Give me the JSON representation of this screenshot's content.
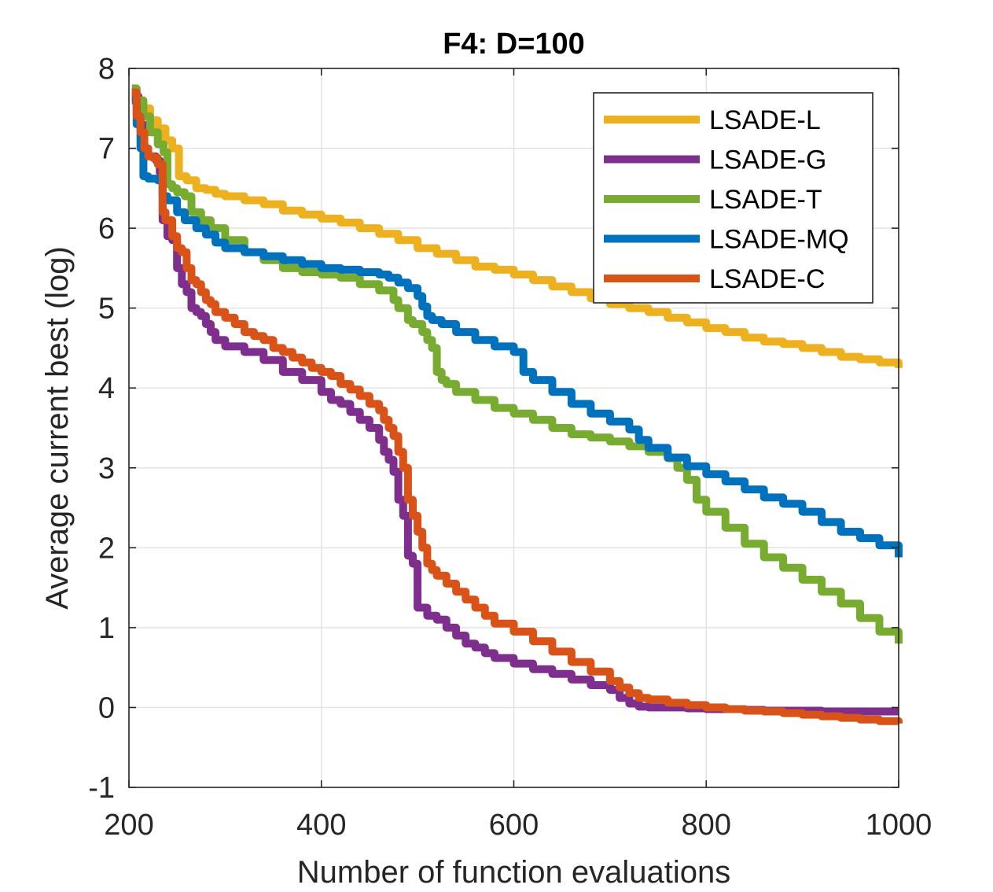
{
  "chart_data": {
    "type": "line",
    "title": "F4: D=100",
    "xlabel": "Number of function evaluations",
    "ylabel": "Average current best (log)",
    "xlim": [
      200,
      1000
    ],
    "ylim": [
      -1,
      8
    ],
    "xticks": [
      200,
      400,
      600,
      800,
      1000
    ],
    "yticks": [
      -1,
      0,
      1,
      2,
      3,
      4,
      5,
      6,
      7,
      8
    ],
    "xtick_labels": [
      "200",
      "400",
      "600",
      "800",
      "1000"
    ],
    "ytick_labels": [
      "-1",
      "0",
      "1",
      "2",
      "3",
      "4",
      "5",
      "6",
      "7",
      "8"
    ],
    "grid": true,
    "legend_position": "top-right",
    "series": [
      {
        "name": "LSADE-L",
        "color": "#EDB120",
        "x": [
          203,
          208,
          215,
          222,
          230,
          238,
          245,
          252,
          260,
          270,
          280,
          290,
          300,
          320,
          340,
          360,
          380,
          400,
          420,
          440,
          460,
          480,
          500,
          520,
          540,
          560,
          580,
          600,
          620,
          640,
          660,
          680,
          700,
          720,
          740,
          760,
          780,
          800,
          820,
          840,
          860,
          880,
          900,
          920,
          940,
          960,
          980,
          1000
        ],
        "y": [
          7.7,
          7.6,
          7.5,
          7.35,
          7.25,
          7.1,
          7.0,
          6.65,
          6.6,
          6.5,
          6.48,
          6.43,
          6.4,
          6.35,
          6.3,
          6.22,
          6.17,
          6.12,
          6.07,
          6.0,
          5.93,
          5.85,
          5.75,
          5.68,
          5.6,
          5.52,
          5.48,
          5.42,
          5.35,
          5.27,
          5.2,
          5.12,
          5.05,
          5.0,
          4.95,
          4.88,
          4.82,
          4.75,
          4.7,
          4.63,
          4.58,
          4.55,
          4.5,
          4.45,
          4.39,
          4.36,
          4.32,
          4.25
        ]
      },
      {
        "name": "LSADE-G",
        "color": "#7E2F8E",
        "x": [
          203,
          210,
          215,
          220,
          228,
          232,
          235,
          240,
          245,
          250,
          255,
          260,
          265,
          270,
          275,
          280,
          285,
          290,
          300,
          320,
          340,
          360,
          380,
          400,
          410,
          420,
          430,
          440,
          450,
          460,
          465,
          470,
          475,
          480,
          485,
          490,
          495,
          500,
          510,
          520,
          530,
          540,
          550,
          560,
          570,
          580,
          600,
          620,
          640,
          660,
          680,
          700,
          710,
          720,
          730,
          740,
          760,
          780,
          800,
          820,
          840,
          860,
          880,
          900,
          920,
          940,
          960,
          980,
          1000
        ],
        "y": [
          7.65,
          7.3,
          7.0,
          6.9,
          6.85,
          6.7,
          6.1,
          5.9,
          5.85,
          5.5,
          5.3,
          5.2,
          5.0,
          4.95,
          4.9,
          4.8,
          4.7,
          4.6,
          4.52,
          4.45,
          4.35,
          4.2,
          4.1,
          3.95,
          3.85,
          3.8,
          3.7,
          3.6,
          3.5,
          3.35,
          3.2,
          3.1,
          2.95,
          2.6,
          2.4,
          1.9,
          1.8,
          1.25,
          1.15,
          1.1,
          1.0,
          0.9,
          0.8,
          0.75,
          0.68,
          0.62,
          0.55,
          0.48,
          0.42,
          0.35,
          0.28,
          0.22,
          0.12,
          0.05,
          0.01,
          0.0,
          0.0,
          -0.01,
          -0.02,
          -0.02,
          -0.03,
          -0.04,
          -0.04,
          -0.04,
          -0.05,
          -0.05,
          -0.05,
          -0.05,
          -0.05
        ]
      },
      {
        "name": "LSADE-T",
        "color": "#77AC30",
        "x": [
          203,
          208,
          215,
          222,
          230,
          236,
          240,
          245,
          250,
          258,
          265,
          275,
          285,
          300,
          320,
          340,
          360,
          380,
          400,
          420,
          440,
          460,
          475,
          480,
          490,
          495,
          505,
          510,
          515,
          520,
          525,
          530,
          540,
          560,
          580,
          600,
          620,
          640,
          660,
          680,
          700,
          720,
          740,
          760,
          770,
          780,
          790,
          800,
          820,
          840,
          860,
          880,
          900,
          920,
          940,
          960,
          980,
          1000
        ],
        "y": [
          7.75,
          7.6,
          7.4,
          7.2,
          7.05,
          6.95,
          6.55,
          6.5,
          6.45,
          6.4,
          6.2,
          6.1,
          6.0,
          5.85,
          5.7,
          5.6,
          5.5,
          5.45,
          5.42,
          5.38,
          5.3,
          5.22,
          5.1,
          5.0,
          4.85,
          4.8,
          4.7,
          4.6,
          4.5,
          4.2,
          4.1,
          4.05,
          3.95,
          3.85,
          3.75,
          3.68,
          3.6,
          3.5,
          3.42,
          3.38,
          3.33,
          3.27,
          3.2,
          3.12,
          3.0,
          2.85,
          2.6,
          2.45,
          2.25,
          2.05,
          1.88,
          1.75,
          1.6,
          1.45,
          1.3,
          1.12,
          0.95,
          0.8
        ]
      },
      {
        "name": "LSADE-MQ",
        "color": "#0072BD",
        "x": [
          203,
          208,
          212,
          215,
          220,
          230,
          235,
          240,
          250,
          258,
          270,
          280,
          290,
          300,
          320,
          340,
          360,
          380,
          400,
          420,
          440,
          460,
          470,
          480,
          490,
          500,
          505,
          510,
          515,
          525,
          540,
          560,
          580,
          600,
          610,
          620,
          640,
          660,
          680,
          700,
          720,
          730,
          740,
          760,
          780,
          800,
          820,
          840,
          860,
          880,
          900,
          920,
          940,
          960,
          980,
          1000
        ],
        "y": [
          7.6,
          7.3,
          7.0,
          6.65,
          6.62,
          6.6,
          6.4,
          6.35,
          6.2,
          6.1,
          6.0,
          5.92,
          5.82,
          5.75,
          5.7,
          5.65,
          5.6,
          5.55,
          5.5,
          5.48,
          5.45,
          5.42,
          5.38,
          5.32,
          5.25,
          5.15,
          5.02,
          4.9,
          4.85,
          4.8,
          4.7,
          4.6,
          4.52,
          4.45,
          4.2,
          4.1,
          3.95,
          3.8,
          3.68,
          3.58,
          3.48,
          3.35,
          3.25,
          3.13,
          3.02,
          2.92,
          2.83,
          2.73,
          2.63,
          2.55,
          2.45,
          2.32,
          2.2,
          2.12,
          2.03,
          1.88
        ]
      },
      {
        "name": "LSADE-C",
        "color": "#D95319",
        "x": [
          203,
          208,
          212,
          216,
          220,
          225,
          230,
          235,
          238,
          245,
          250,
          255,
          260,
          265,
          270,
          275,
          280,
          285,
          290,
          300,
          310,
          320,
          330,
          340,
          350,
          360,
          370,
          380,
          390,
          400,
          410,
          420,
          430,
          440,
          450,
          460,
          465,
          470,
          475,
          480,
          485,
          490,
          495,
          500,
          505,
          510,
          515,
          520,
          530,
          540,
          550,
          560,
          570,
          580,
          600,
          620,
          640,
          660,
          680,
          700,
          710,
          720,
          730,
          740,
          760,
          780,
          800,
          820,
          840,
          860,
          880,
          900,
          920,
          940,
          960,
          980,
          1000
        ],
        "y": [
          7.7,
          7.4,
          7.2,
          7.0,
          6.9,
          6.88,
          6.8,
          6.2,
          6.1,
          5.9,
          5.75,
          5.7,
          5.5,
          5.35,
          5.3,
          5.2,
          5.1,
          5.05,
          4.95,
          4.88,
          4.8,
          4.7,
          4.65,
          4.6,
          4.5,
          4.45,
          4.38,
          4.32,
          4.25,
          4.2,
          4.15,
          4.05,
          3.98,
          3.9,
          3.8,
          3.72,
          3.6,
          3.5,
          3.4,
          3.2,
          3.0,
          2.6,
          2.4,
          2.2,
          2.0,
          1.8,
          1.72,
          1.65,
          1.55,
          1.45,
          1.35,
          1.25,
          1.15,
          1.05,
          0.95,
          0.83,
          0.7,
          0.57,
          0.45,
          0.33,
          0.25,
          0.18,
          0.12,
          0.1,
          0.06,
          0.03,
          0.0,
          -0.02,
          -0.04,
          -0.05,
          -0.07,
          -0.09,
          -0.11,
          -0.13,
          -0.15,
          -0.17,
          -0.2
        ]
      }
    ]
  }
}
